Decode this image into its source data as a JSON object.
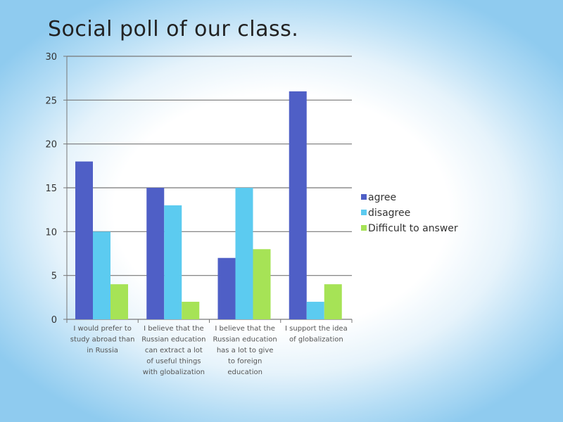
{
  "colors": {
    "agree": "#4f5fc6",
    "disagree": "#5ccbf0",
    "difficult": "#a6e356",
    "gridline": "#777777",
    "axis": "#777777"
  },
  "chart_data": {
    "type": "bar",
    "title": "Social poll of our class.",
    "xlabel": "",
    "ylabel": "",
    "ylim": [
      0,
      30
    ],
    "yticks": [
      0,
      5,
      10,
      15,
      20,
      25,
      30
    ],
    "grid": true,
    "legend_position": "right",
    "categories": [
      [
        "I would prefer to",
        "study abroad than",
        "in Russia"
      ],
      [
        "I believe that the",
        "Russian education",
        "can extract a lot",
        "of useful things",
        "with globalization"
      ],
      [
        "I believe that the",
        "Russian education",
        "has a lot to give",
        "to foreign",
        "education"
      ],
      [
        "I support the idea",
        "of globalization"
      ]
    ],
    "series": [
      {
        "name": "agree",
        "color_key": "agree",
        "values": [
          18,
          15,
          7,
          26
        ]
      },
      {
        "name": "disagree",
        "color_key": "disagree",
        "values": [
          10,
          13,
          15,
          2
        ]
      },
      {
        "name": "Difficult to answer",
        "color_key": "difficult",
        "values": [
          4,
          2,
          8,
          4
        ]
      }
    ]
  }
}
